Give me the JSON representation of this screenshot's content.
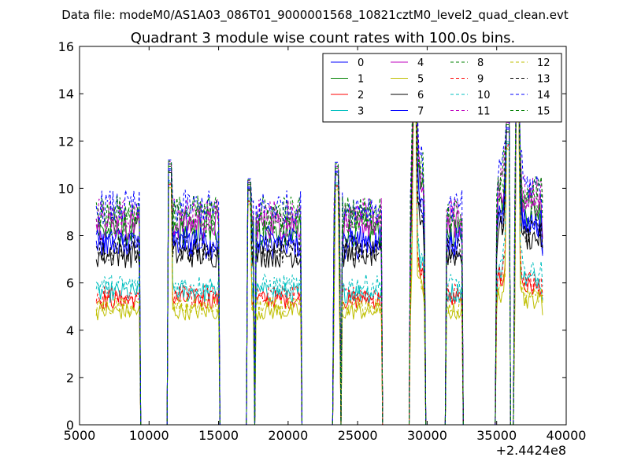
{
  "figure": {
    "suptitle": "Data file: modeM0/AS1A03_086T01_9000001568_10821cztM0_level2_quad_clean.evt"
  },
  "chart_data": {
    "type": "line",
    "title": "Quadrant 3 module wise count rates with 100.0s bins.",
    "xlabel": "",
    "ylabel": "",
    "xlim": [
      5000,
      40000
    ],
    "ylim": [
      0,
      16
    ],
    "x_offset_label": "+2.4424e8",
    "x_ticks": [
      5000,
      10000,
      15000,
      20000,
      25000,
      30000,
      35000,
      40000
    ],
    "y_ticks": [
      0,
      2,
      4,
      6,
      8,
      10,
      12,
      14,
      16
    ],
    "grid": false,
    "legend": {
      "placement": "top-right",
      "columns": 4
    },
    "bin_size_s": 100,
    "good_time_intervals": [
      [
        6200,
        9300
      ],
      [
        11400,
        15000
      ],
      [
        17100,
        17500
      ],
      [
        17700,
        20900
      ],
      [
        23300,
        23700
      ],
      [
        23900,
        26700
      ],
      [
        28800,
        29800
      ],
      [
        31400,
        32500
      ],
      [
        35000,
        35900
      ],
      [
        36300,
        38300
      ]
    ],
    "spikes": [
      {
        "x": 11450,
        "value": 11.2
      },
      {
        "x": 17200,
        "value": 10.4
      },
      {
        "x": 23500,
        "value": 11.1
      },
      {
        "x": 29100,
        "value": 14.5
      },
      {
        "x": 35800,
        "value": 13.0
      },
      {
        "x": 36500,
        "value": 14.5
      }
    ],
    "series": [
      {
        "name": "0",
        "color": "#0000ff",
        "style": "solid",
        "mean_rate": 7.6
      },
      {
        "name": "1",
        "color": "#008000",
        "style": "solid",
        "mean_rate": 8.2
      },
      {
        "name": "2",
        "color": "#ff0000",
        "style": "solid",
        "mean_rate": 5.3
      },
      {
        "name": "3",
        "color": "#00bfbf",
        "style": "solid",
        "mean_rate": 5.6
      },
      {
        "name": "4",
        "color": "#bf00bf",
        "style": "solid",
        "mean_rate": 8.5
      },
      {
        "name": "5",
        "color": "#bfbf00",
        "style": "solid",
        "mean_rate": 4.8
      },
      {
        "name": "6",
        "color": "#000000",
        "style": "solid",
        "mean_rate": 7.2
      },
      {
        "name": "7",
        "color": "#0000ff",
        "style": "solid",
        "mean_rate": 7.8
      },
      {
        "name": "8",
        "color": "#008000",
        "style": "dashed",
        "mean_rate": 8.6
      },
      {
        "name": "9",
        "color": "#ff0000",
        "style": "dashed",
        "mean_rate": 5.5
      },
      {
        "name": "10",
        "color": "#00bfbf",
        "style": "dashed",
        "mean_rate": 5.9
      },
      {
        "name": "11",
        "color": "#bf00bf",
        "style": "dashed",
        "mean_rate": 8.9
      },
      {
        "name": "12",
        "color": "#bfbf00",
        "style": "dashed",
        "mean_rate": 5.0
      },
      {
        "name": "13",
        "color": "#000000",
        "style": "dashed",
        "mean_rate": 7.4
      },
      {
        "name": "14",
        "color": "#0000ff",
        "style": "dashed",
        "mean_rate": 9.2
      },
      {
        "name": "15",
        "color": "#008000",
        "style": "dashed",
        "mean_rate": 9.0
      }
    ]
  }
}
